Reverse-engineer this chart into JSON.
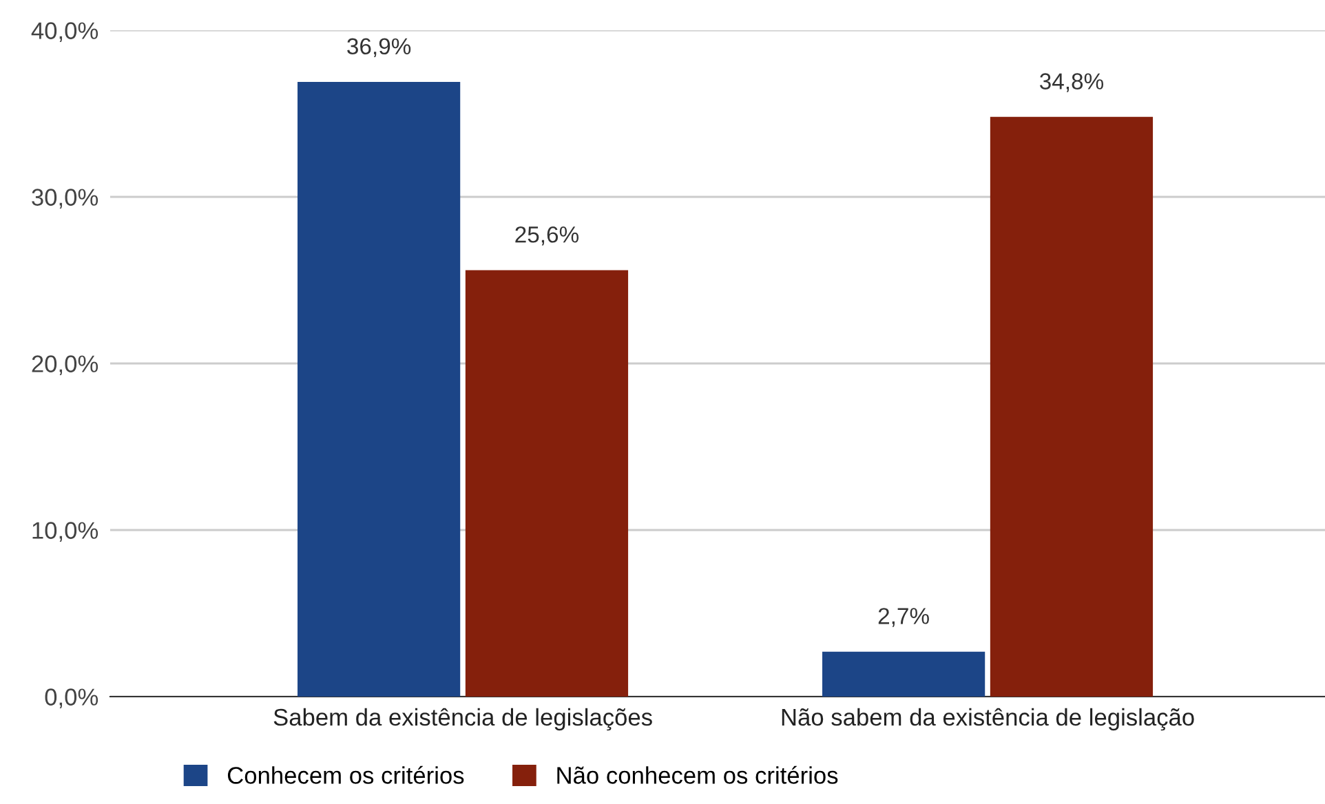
{
  "chart_data": {
    "type": "bar",
    "categories": [
      "Sabem da existência de legislações",
      "Não sabem da existência de legislação"
    ],
    "series": [
      {
        "name": "Conhecem os critérios",
        "color": "#1c4587",
        "values": [
          36.9,
          2.7
        ],
        "value_labels": [
          "36,9%",
          "2,7%"
        ]
      },
      {
        "name": "Não conhecem os critérios",
        "color": "#85200c",
        "values": [
          25.6,
          34.8
        ],
        "value_labels": [
          "25,6%",
          "34,8%"
        ]
      }
    ],
    "ylim": [
      0,
      40
    ],
    "yticks": [
      {
        "value": 0,
        "label": "0,0%"
      },
      {
        "value": 10,
        "label": "10,0%"
      },
      {
        "value": 20,
        "label": "20,0%"
      },
      {
        "value": 30,
        "label": "30,0%"
      },
      {
        "value": 40,
        "label": "40,0%"
      }
    ],
    "grid": "y",
    "legend": "bottom"
  }
}
